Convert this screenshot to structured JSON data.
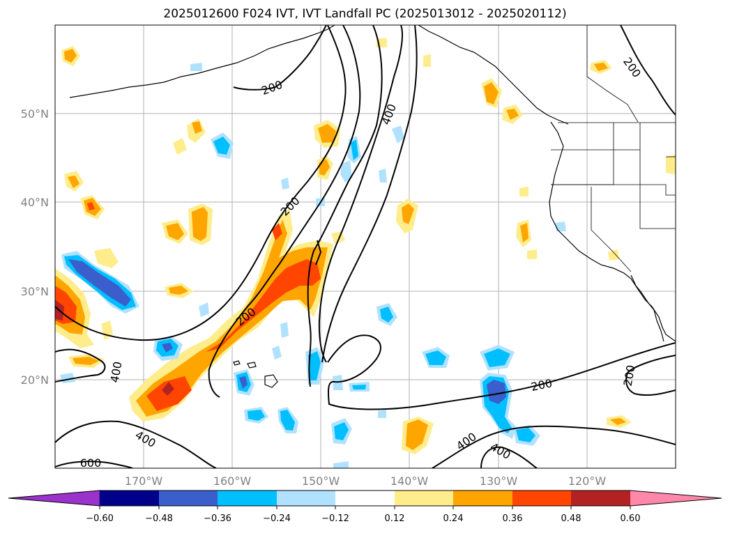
{
  "title": "2025012600 F024 IVT, IVT Landfall PC (2025013012 - 2025020112)",
  "map": {
    "lat_labels": [
      "50°N",
      "40°N",
      "30°N",
      "20°N"
    ],
    "lon_labels": [
      "170°W",
      "160°W",
      "150°W",
      "140°W",
      "130°W",
      "120°W"
    ],
    "contour_labels": [
      "200",
      "200",
      "200",
      "400",
      "400",
      "200",
      "200",
      "400",
      "400",
      "200",
      "400",
      "600"
    ],
    "contour_color": "#000000",
    "grid_color": "#b0b0b0"
  },
  "colorbar": {
    "colors": [
      "#9933cc",
      "#00008b",
      "#3a5fcd",
      "#00bfff",
      "#b0e2ff",
      "#ffffff",
      "#ffec8b",
      "#ffa500",
      "#ff4500",
      "#b22222",
      "#ff88aa"
    ],
    "tick_labels": [
      "−0.60",
      "−0.48",
      "−0.36",
      "−0.24",
      "−0.12",
      "0.12",
      "0.24",
      "0.36",
      "0.48",
      "0.60"
    ]
  }
}
